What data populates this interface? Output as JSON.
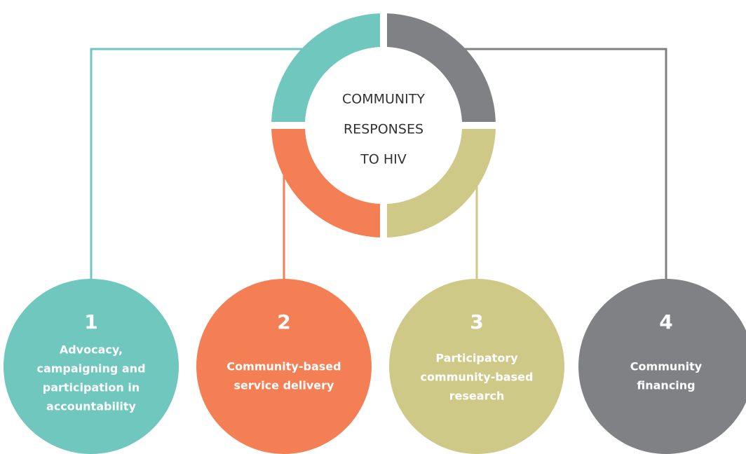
{
  "center": {
    "lines": [
      "COMMUNITY",
      "RESPONSES",
      "TO HIV"
    ]
  },
  "nodes": [
    {
      "number": "1",
      "lines": [
        "Advocacy,",
        "campaigning and",
        "participation in",
        "accountability"
      ],
      "color": "#6fc7bd"
    },
    {
      "number": "2",
      "lines": [
        "Community-based",
        "service delivery"
      ],
      "color": "#f47f55"
    },
    {
      "number": "3",
      "lines": [
        "Participatory",
        "community-based",
        "research"
      ],
      "color": "#cfc988"
    },
    {
      "number": "4",
      "lines": [
        "Community",
        "financing"
      ],
      "color": "#808184"
    }
  ]
}
